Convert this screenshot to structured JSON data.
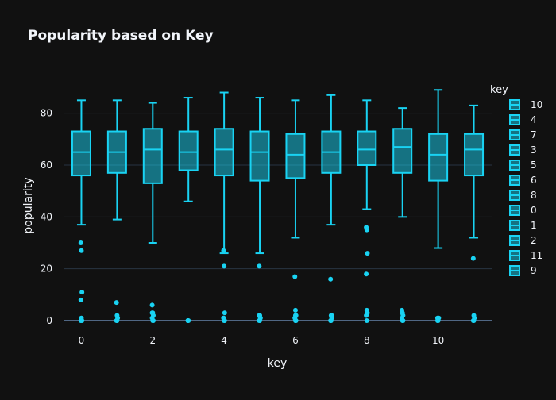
{
  "chart_data": {
    "type": "box",
    "title": "Popularity based on Key",
    "xlabel": "key",
    "ylabel": "popularity",
    "xlim": [
      -0.5,
      11.5
    ],
    "ylim": [
      0,
      90
    ],
    "xticks": [
      0,
      2,
      4,
      6,
      8,
      10
    ],
    "yticks": [
      0,
      20,
      40,
      60,
      80
    ],
    "grid": true,
    "legend_title": "key",
    "legend_position": "right",
    "color": "#19d3f3",
    "series": [
      {
        "name": "10",
        "x": 10,
        "min": 28,
        "q1": 54,
        "median": 64,
        "q3": 72,
        "max": 89,
        "outliers": [
          0,
          0,
          1,
          1
        ]
      },
      {
        "name": "4",
        "x": 4,
        "min": 26,
        "q1": 56,
        "median": 66,
        "q3": 74,
        "max": 88,
        "outliers": [
          27,
          21,
          3,
          1,
          0,
          0,
          1
        ]
      },
      {
        "name": "7",
        "x": 7,
        "min": 37,
        "q1": 57,
        "median": 65,
        "q3": 73,
        "max": 87,
        "outliers": [
          16,
          2,
          1,
          0,
          0,
          2
        ]
      },
      {
        "name": "3",
        "x": 3,
        "min": 46,
        "q1": 58,
        "median": 65,
        "q3": 73,
        "max": 86,
        "outliers": [
          0,
          0
        ]
      },
      {
        "name": "5",
        "x": 5,
        "min": 26,
        "q1": 54,
        "median": 65,
        "q3": 73,
        "max": 86,
        "outliers": [
          21,
          2,
          1,
          0,
          0,
          1,
          2
        ]
      },
      {
        "name": "6",
        "x": 6,
        "min": 32,
        "q1": 55,
        "median": 64,
        "q3": 72,
        "max": 85,
        "outliers": [
          17,
          4,
          2,
          1,
          0,
          0,
          1,
          2
        ]
      },
      {
        "name": "8",
        "x": 8,
        "min": 43,
        "q1": 60,
        "median": 66,
        "q3": 73,
        "max": 85,
        "outliers": [
          36,
          35,
          26,
          18,
          4,
          3,
          2,
          0
        ]
      },
      {
        "name": "0",
        "x": 0,
        "min": 37,
        "q1": 56,
        "median": 65,
        "q3": 73,
        "max": 85,
        "outliers": [
          30,
          27,
          11,
          8,
          1,
          0,
          0
        ]
      },
      {
        "name": "1",
        "x": 1,
        "min": 39,
        "q1": 57,
        "median": 65,
        "q3": 73,
        "max": 85,
        "outliers": [
          7,
          2,
          1,
          0,
          0
        ]
      },
      {
        "name": "2",
        "x": 2,
        "min": 30,
        "q1": 53,
        "median": 66,
        "q3": 74,
        "max": 84,
        "outliers": [
          6,
          3,
          2,
          1,
          0,
          0,
          3
        ]
      },
      {
        "name": "11",
        "x": 11,
        "min": 32,
        "q1": 56,
        "median": 66,
        "q3": 72,
        "max": 83,
        "outliers": [
          24,
          2,
          1,
          0,
          0
        ]
      },
      {
        "name": "9",
        "x": 9,
        "min": 40,
        "q1": 57,
        "median": 67,
        "q3": 74,
        "max": 82,
        "outliers": [
          4,
          3,
          2,
          1,
          0,
          0,
          3
        ]
      }
    ]
  }
}
